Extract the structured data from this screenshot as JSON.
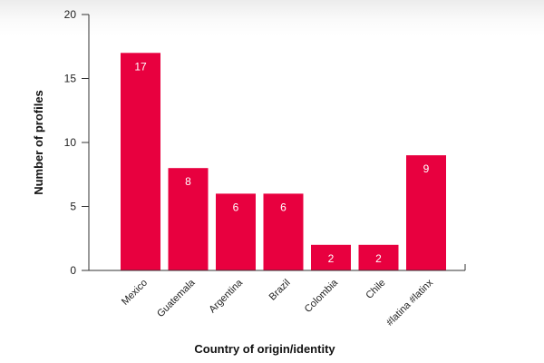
{
  "chart_data": {
    "type": "bar",
    "title": "",
    "xlabel": "Country of origin/identity",
    "ylabel": "Number of profiles",
    "categories": [
      "Mexico",
      "Guatemala",
      "Argentina",
      "Brazil",
      "Colombia",
      "Chile",
      "#latina #latinx"
    ],
    "values": [
      17,
      8,
      6,
      6,
      2,
      2,
      9
    ],
    "ylim": [
      0,
      20
    ],
    "yticks": [
      "0",
      "5",
      "10",
      "15",
      "20"
    ],
    "data_labels": [
      "17",
      "8",
      "6",
      "6",
      "2",
      "2",
      "9"
    ],
    "bar_color": "#e8003f",
    "grid": false
  }
}
